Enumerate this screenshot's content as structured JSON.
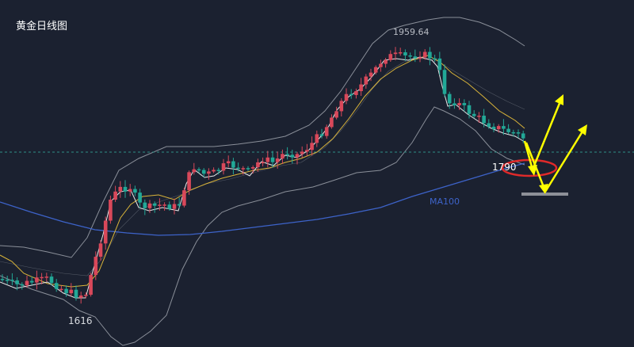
{
  "title": "黄金日线图",
  "chart_data": {
    "type": "candlestick",
    "colors": {
      "background": "#1b2130",
      "up": "#d9485a",
      "down": "#22a897",
      "ma_fast": "#e8e8e8",
      "ma_slow": "#d9b43a",
      "ma100": "#3d63c9",
      "bollinger": "#8a8f99",
      "dashed_level": "#2f8f86",
      "arrow": "#ffff00",
      "target_ellipse": "#e02a2a"
    },
    "annotations": {
      "high_label": "1959.64",
      "low_label": "1616",
      "target_label": "1790",
      "ma100_label": "MA100"
    },
    "grid": false,
    "key_values": {
      "swing_low": 1616,
      "swing_high": 1959.64,
      "target": 1790
    }
  }
}
